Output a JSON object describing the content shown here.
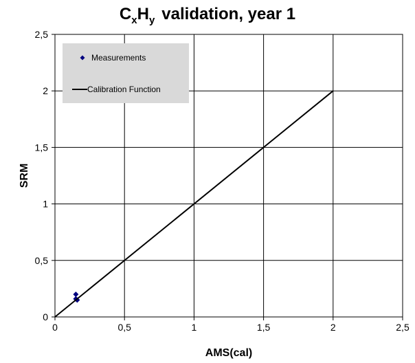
{
  "chart_data": {
    "type": "scatter",
    "title": {
      "main_c": "C",
      "sub_x": "x",
      "main_h": "H",
      "sub_y": "y",
      "rest": "validation, year 1"
    },
    "xlabel": "AMS(cal)",
    "ylabel": "SRM",
    "xlim": [
      0,
      2.5
    ],
    "ylim": [
      0,
      2.5
    ],
    "xticks": [
      0,
      0.5,
      1,
      1.5,
      2,
      2.5
    ],
    "yticks": [
      0,
      0.5,
      1,
      1.5,
      2,
      2.5
    ],
    "xtick_labels": [
      "0",
      "0,5",
      "1",
      "1,5",
      "2",
      "2,5"
    ],
    "ytick_labels": [
      "0",
      "0,5",
      "1",
      "1,5",
      "2",
      "2,5"
    ],
    "grid": true,
    "legend_position": "top-left",
    "series": [
      {
        "name": "Measurements",
        "kind": "scatter",
        "marker": "diamond",
        "color": "#000080",
        "points": [
          {
            "x": 0.15,
            "y": 0.2
          },
          {
            "x": 0.15,
            "y": 0.16
          },
          {
            "x": 0.16,
            "y": 0.15
          }
        ]
      },
      {
        "name": "Calibration Function",
        "kind": "line",
        "color": "#000000",
        "points": [
          {
            "x": 0,
            "y": 0
          },
          {
            "x": 2,
            "y": 2
          }
        ]
      }
    ]
  }
}
